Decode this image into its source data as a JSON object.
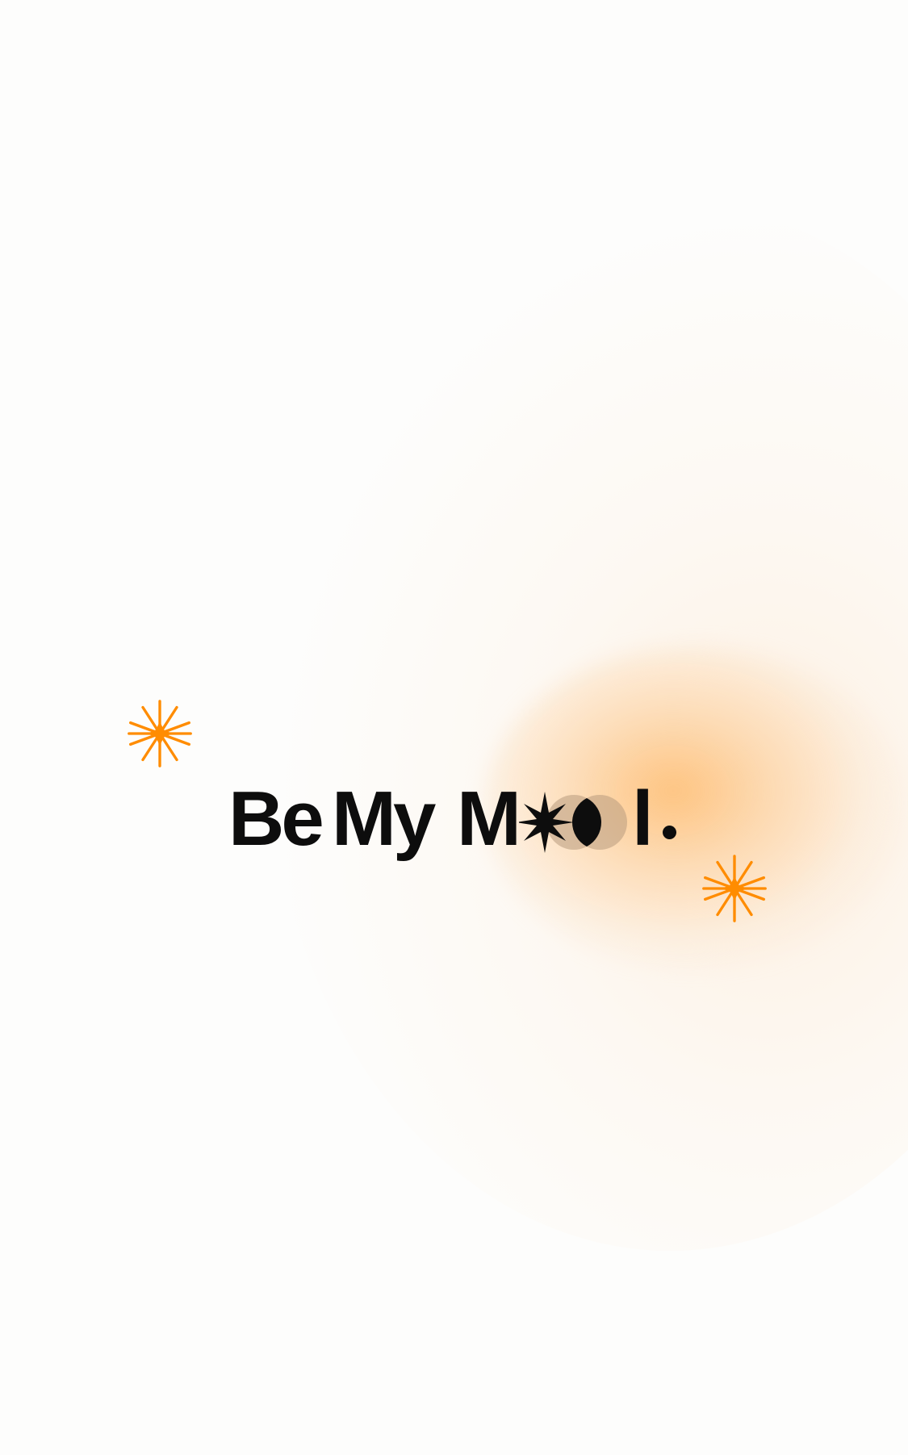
{
  "brand": {
    "word_be": "Be",
    "word_my": "My",
    "word_m": "M",
    "word_l": "l",
    "wordmark_alt": "BeMyMool.",
    "text_color": "#0d0d0d",
    "accent_color": "#ff8c00",
    "glow_color": "#fdbb6e"
  },
  "icons": {
    "sparkle": "sparkle-icon",
    "moon": "moon-star-icon"
  }
}
